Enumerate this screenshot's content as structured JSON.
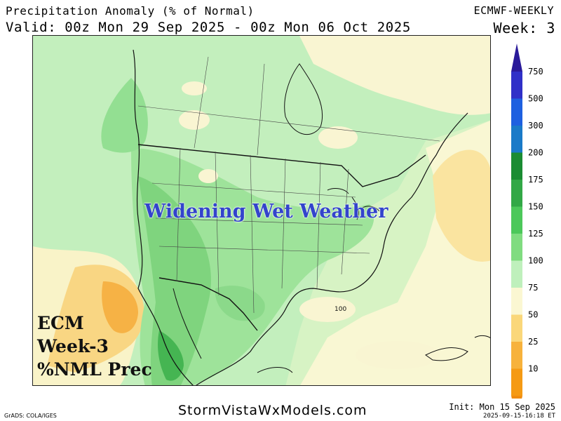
{
  "header": {
    "title": "Precipitation Anomaly (% of Normal)",
    "valid": "Valid: 00z Mon 29 Sep 2025 - 00z Mon 06 Oct 2025",
    "model": "ECMWF-WEEKLY",
    "week": "Week: 3"
  },
  "map": {
    "headline": "Widening Wet Weather",
    "corner_label": [
      "ECM",
      "Week-3",
      "%NML Prec"
    ],
    "contour_label": "100",
    "region": "North America"
  },
  "colorbar": {
    "levels": [
      {
        "label": "750",
        "color": "#3030c8"
      },
      {
        "label": "500",
        "color": "#1e60e0"
      },
      {
        "label": "300",
        "color": "#1a7ac8"
      },
      {
        "label": "200",
        "color": "#1a8c32"
      },
      {
        "label": "175",
        "color": "#32a846"
      },
      {
        "label": "150",
        "color": "#4cc85a"
      },
      {
        "label": "125",
        "color": "#80dc80"
      },
      {
        "label": "100",
        "color": "#bff0bc"
      },
      {
        "label": "75",
        "color": "#fbf7d2"
      },
      {
        "label": "50",
        "color": "#fad77a"
      },
      {
        "label": "25",
        "color": "#f7b23c"
      },
      {
        "label": "10",
        "color": "#f59a14"
      }
    ],
    "top_color": "#2a1a9a",
    "bottom_color": "#f08c10"
  },
  "footer": {
    "site": "StormVistaWxModels.com",
    "grads": "GrADS: COLA/IGES",
    "init": "Init: Mon 15 Sep 2025",
    "stamp": "2025-09-15-16:18 ET"
  }
}
